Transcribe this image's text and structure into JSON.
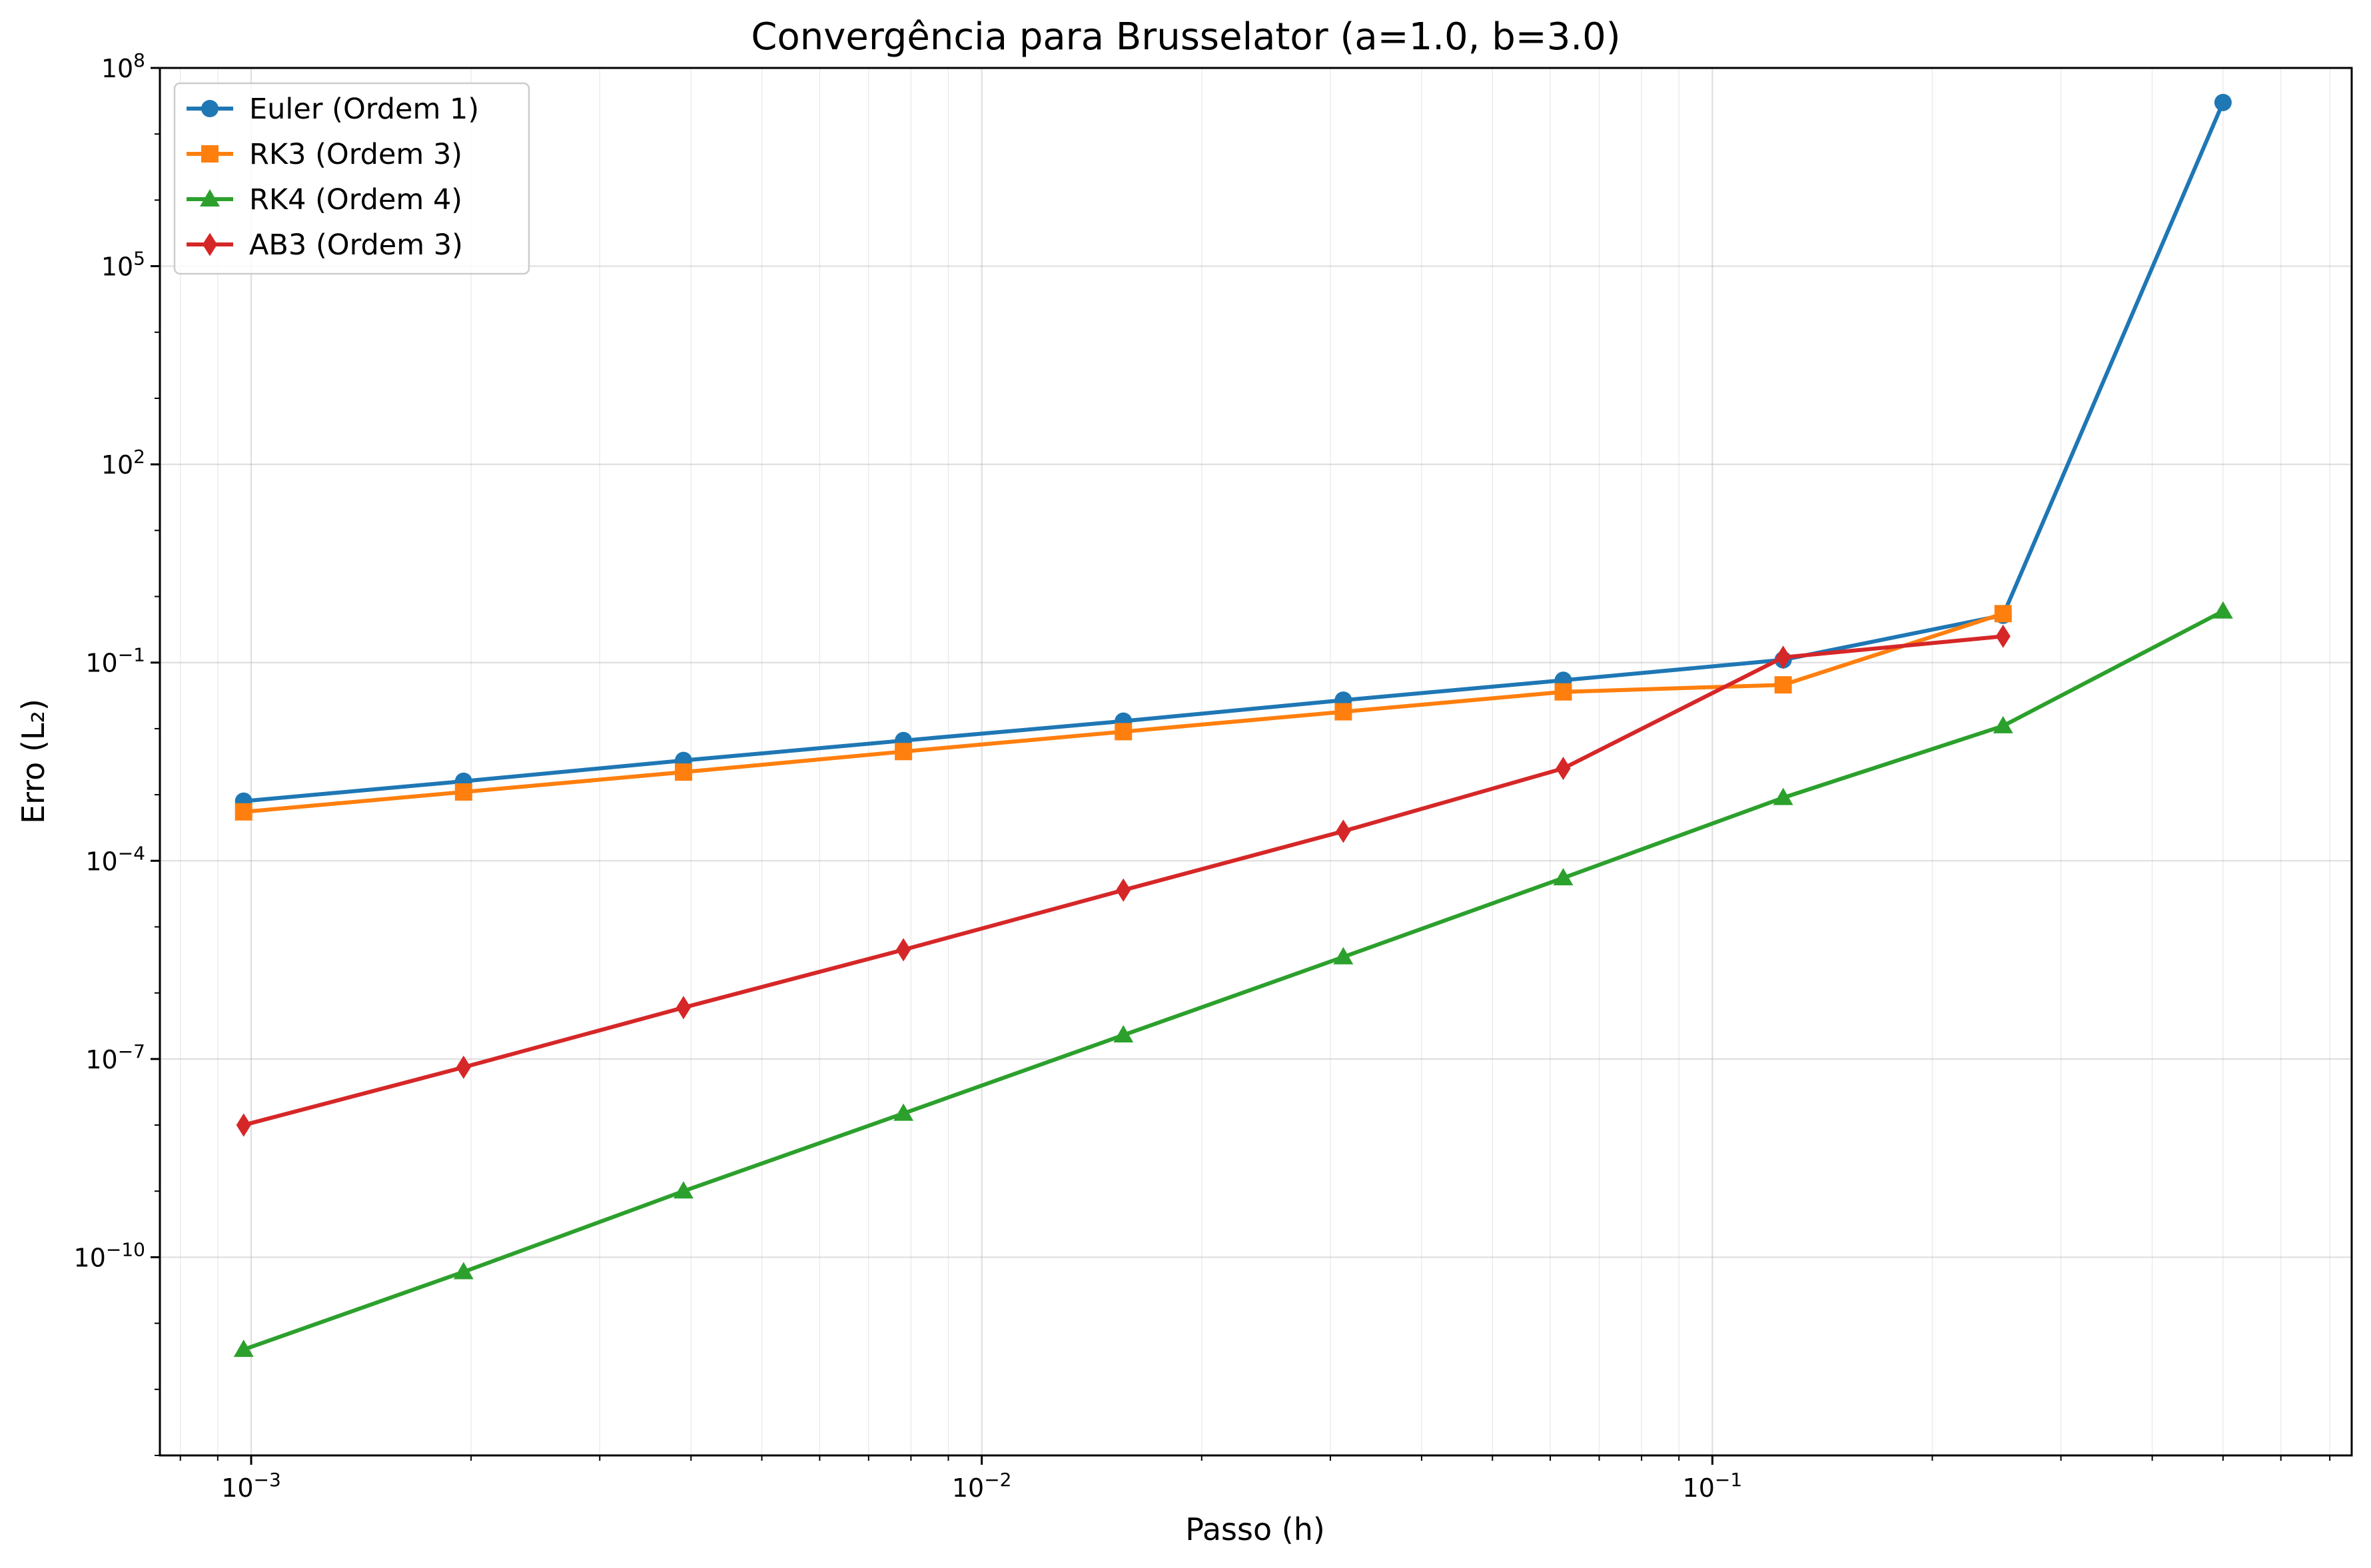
{
  "chart_data": {
    "type": "line",
    "title": "Convergência para Brusselator (a=1.0, b=3.0)",
    "xlabel": "Passo (h)",
    "ylabel": "Erro (L₂)",
    "xscale": "log",
    "yscale": "log",
    "xlim": [
      0.00075,
      0.75
    ],
    "ylim": [
      1e-13,
      100000000.0
    ],
    "grid": true,
    "legend_position": "upper-left",
    "x_ticks": [
      {
        "value": 0.001,
        "base": "10",
        "exp": "−3"
      },
      {
        "value": 0.01,
        "base": "10",
        "exp": "−2"
      },
      {
        "value": 0.1,
        "base": "10",
        "exp": "−1"
      }
    ],
    "y_ticks": [
      {
        "value": 1e-10,
        "base": "10",
        "exp": "−10"
      },
      {
        "value": 1e-07,
        "base": "10",
        "exp": "−7"
      },
      {
        "value": 0.0001,
        "base": "10",
        "exp": "−4"
      },
      {
        "value": 0.1,
        "base": "10",
        "exp": "−1"
      },
      {
        "value": 100,
        "base": "10",
        "exp": "2"
      },
      {
        "value": 100000,
        "base": "10",
        "exp": "5"
      },
      {
        "value": 100000000,
        "base": "10",
        "exp": "8"
      }
    ],
    "series": [
      {
        "name": "Euler (Ordem 1)",
        "color": "#1f77b4",
        "marker": "circle",
        "x": [
          0.0009765625,
          0.001953125,
          0.00390625,
          0.0078125,
          0.015625,
          0.03125,
          0.0625,
          0.125,
          0.25,
          0.5
        ],
        "y": [
          0.0008,
          0.0016,
          0.0033,
          0.0066,
          0.013,
          0.027,
          0.054,
          0.11,
          0.52,
          30000000
        ]
      },
      {
        "name": "RK3 (Ordem 3)",
        "color": "#ff7f0e",
        "marker": "square",
        "x": [
          0.0009765625,
          0.001953125,
          0.00390625,
          0.0078125,
          0.015625,
          0.03125,
          0.0625,
          0.125,
          0.25
        ],
        "y": [
          0.00055,
          0.0011,
          0.0022,
          0.0045,
          0.009,
          0.018,
          0.036,
          0.046,
          0.55
        ]
      },
      {
        "name": "RK4 (Ordem 4)",
        "color": "#2ca02c",
        "marker": "triangle",
        "x": [
          0.0009765625,
          0.001953125,
          0.00390625,
          0.0078125,
          0.015625,
          0.03125,
          0.0625,
          0.125,
          0.25,
          0.5
        ],
        "y": [
          4e-12,
          6e-11,
          1e-09,
          1.5e-08,
          2.3e-07,
          3.5e-06,
          5.5e-05,
          0.0009,
          0.011,
          0.6
        ]
      },
      {
        "name": "AB3 (Ordem 3)",
        "color": "#d62728",
        "marker": "diamond",
        "x": [
          0.0009765625,
          0.001953125,
          0.00390625,
          0.0078125,
          0.015625,
          0.03125,
          0.0625,
          0.125,
          0.25
        ],
        "y": [
          1e-08,
          7.5e-08,
          6e-07,
          4.5e-06,
          3.6e-05,
          0.00028,
          0.0025,
          0.12,
          0.25
        ]
      }
    ]
  }
}
